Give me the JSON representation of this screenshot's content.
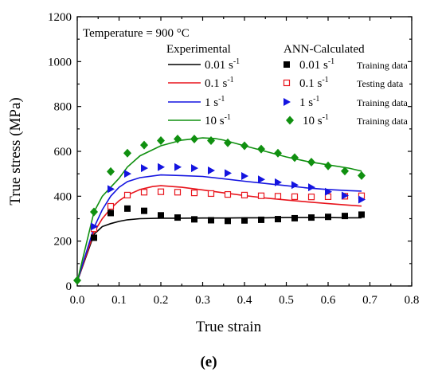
{
  "panel_label": "(e)",
  "chart_data": {
    "type": "line",
    "annotation": "Temperature = 900 °C",
    "xlabel": "True strain",
    "ylabel": "True stress (MPa)",
    "xlim": [
      0.0,
      0.8
    ],
    "ylim": [
      0,
      1200
    ],
    "x_ticks": [
      "0.0",
      "0.1",
      "0.2",
      "0.3",
      "0.4",
      "0.5",
      "0.6",
      "0.7",
      "0.8"
    ],
    "y_ticks": [
      "0",
      "200",
      "400",
      "600",
      "800",
      "1000",
      "1200"
    ],
    "legend": {
      "placement": "top-right",
      "col1_header": "Experimental",
      "col2_header": "ANN-Calculated",
      "rows": [
        {
          "line_label": "0.01 s",
          "marker_label": "0.01 s",
          "kind": "Training data",
          "color": "#000000",
          "marker": "square"
        },
        {
          "line_label": "0.1 s",
          "marker_label": "0.1 s",
          "kind": "Testing data",
          "color": "#e8141c",
          "marker": "open-square"
        },
        {
          "line_label": "1 s",
          "marker_label": "1 s",
          "kind": "Training data",
          "color": "#1414e0",
          "marker": "triangle-right"
        },
        {
          "line_label": "10 s",
          "marker_label": "10 s",
          "kind": "Training data",
          "color": "#109010",
          "marker": "diamond"
        }
      ],
      "superscript": "-1"
    },
    "experimental_series": [
      {
        "name": "0.01 s-1",
        "color": "#000000",
        "points": [
          [
            0.0,
            20
          ],
          [
            0.04,
            230
          ],
          [
            0.06,
            265
          ],
          [
            0.08,
            278
          ],
          [
            0.1,
            288
          ],
          [
            0.12,
            295
          ],
          [
            0.15,
            300
          ],
          [
            0.2,
            302
          ],
          [
            0.25,
            302
          ],
          [
            0.3,
            303
          ],
          [
            0.35,
            303
          ],
          [
            0.4,
            304
          ],
          [
            0.45,
            304
          ],
          [
            0.5,
            305
          ],
          [
            0.55,
            305
          ],
          [
            0.6,
            305
          ],
          [
            0.65,
            304
          ],
          [
            0.68,
            304
          ]
        ]
      },
      {
        "name": "0.1 s-1",
        "color": "#e8141c",
        "points": [
          [
            0.0,
            20
          ],
          [
            0.04,
            240
          ],
          [
            0.06,
            300
          ],
          [
            0.08,
            345
          ],
          [
            0.1,
            380
          ],
          [
            0.12,
            405
          ],
          [
            0.15,
            430
          ],
          [
            0.18,
            443
          ],
          [
            0.2,
            447
          ],
          [
            0.25,
            440
          ],
          [
            0.3,
            428
          ],
          [
            0.35,
            415
          ],
          [
            0.4,
            403
          ],
          [
            0.45,
            392
          ],
          [
            0.5,
            383
          ],
          [
            0.55,
            375
          ],
          [
            0.6,
            367
          ],
          [
            0.65,
            360
          ],
          [
            0.68,
            356
          ]
        ]
      },
      {
        "name": "1 s-1",
        "color": "#1414e0",
        "points": [
          [
            0.0,
            20
          ],
          [
            0.04,
            260
          ],
          [
            0.06,
            340
          ],
          [
            0.08,
            400
          ],
          [
            0.1,
            440
          ],
          [
            0.12,
            465
          ],
          [
            0.15,
            483
          ],
          [
            0.2,
            495
          ],
          [
            0.25,
            492
          ],
          [
            0.3,
            488
          ],
          [
            0.35,
            478
          ],
          [
            0.4,
            467
          ],
          [
            0.45,
            457
          ],
          [
            0.5,
            447
          ],
          [
            0.55,
            437
          ],
          [
            0.6,
            430
          ],
          [
            0.65,
            425
          ],
          [
            0.68,
            423
          ]
        ]
      },
      {
        "name": "10 s-1",
        "color": "#109010",
        "points": [
          [
            0.0,
            20
          ],
          [
            0.04,
            330
          ],
          [
            0.06,
            400
          ],
          [
            0.08,
            440
          ],
          [
            0.1,
            480
          ],
          [
            0.12,
            530
          ],
          [
            0.15,
            580
          ],
          [
            0.2,
            625
          ],
          [
            0.25,
            650
          ],
          [
            0.3,
            660
          ],
          [
            0.33,
            657
          ],
          [
            0.35,
            650
          ],
          [
            0.4,
            625
          ],
          [
            0.45,
            600
          ],
          [
            0.5,
            575
          ],
          [
            0.55,
            555
          ],
          [
            0.6,
            540
          ],
          [
            0.65,
            525
          ],
          [
            0.68,
            512
          ]
        ]
      }
    ],
    "ann_series": [
      {
        "name": "0.01 s-1",
        "kind": "Training data",
        "color": "#000000",
        "marker": "square",
        "points": [
          [
            0.04,
            215
          ],
          [
            0.08,
            325
          ],
          [
            0.12,
            345
          ],
          [
            0.16,
            335
          ],
          [
            0.2,
            315
          ],
          [
            0.24,
            305
          ],
          [
            0.28,
            297
          ],
          [
            0.32,
            293
          ],
          [
            0.36,
            290
          ],
          [
            0.4,
            292
          ],
          [
            0.44,
            295
          ],
          [
            0.48,
            298
          ],
          [
            0.52,
            302
          ],
          [
            0.56,
            305
          ],
          [
            0.6,
            308
          ],
          [
            0.64,
            312
          ],
          [
            0.68,
            318
          ]
        ]
      },
      {
        "name": "0.1 s-1",
        "kind": "Testing data",
        "color": "#e8141c",
        "marker": "open-square",
        "points": [
          [
            0.04,
            255
          ],
          [
            0.08,
            355
          ],
          [
            0.12,
            405
          ],
          [
            0.16,
            418
          ],
          [
            0.2,
            420
          ],
          [
            0.24,
            418
          ],
          [
            0.28,
            415
          ],
          [
            0.32,
            412
          ],
          [
            0.36,
            408
          ],
          [
            0.4,
            405
          ],
          [
            0.44,
            402
          ],
          [
            0.48,
            400
          ],
          [
            0.52,
            398
          ],
          [
            0.56,
            397
          ],
          [
            0.6,
            398
          ],
          [
            0.64,
            400
          ],
          [
            0.68,
            402
          ]
        ]
      },
      {
        "name": "1 s-1",
        "kind": "Training data",
        "color": "#1414e0",
        "marker": "triangle-right",
        "points": [
          [
            0.04,
            265
          ],
          [
            0.08,
            432
          ],
          [
            0.12,
            500
          ],
          [
            0.16,
            525
          ],
          [
            0.2,
            530
          ],
          [
            0.24,
            530
          ],
          [
            0.28,
            525
          ],
          [
            0.32,
            515
          ],
          [
            0.36,
            503
          ],
          [
            0.4,
            490
          ],
          [
            0.44,
            475
          ],
          [
            0.48,
            462
          ],
          [
            0.52,
            450
          ],
          [
            0.56,
            440
          ],
          [
            0.6,
            420
          ],
          [
            0.64,
            403
          ],
          [
            0.68,
            385
          ]
        ]
      },
      {
        "name": "10 s-1",
        "kind": "Training data",
        "color": "#109010",
        "marker": "diamond",
        "points": [
          [
            0.0,
            25
          ],
          [
            0.04,
            330
          ],
          [
            0.08,
            510
          ],
          [
            0.12,
            592
          ],
          [
            0.16,
            628
          ],
          [
            0.2,
            648
          ],
          [
            0.24,
            655
          ],
          [
            0.28,
            655
          ],
          [
            0.32,
            648
          ],
          [
            0.36,
            638
          ],
          [
            0.4,
            625
          ],
          [
            0.44,
            610
          ],
          [
            0.48,
            592
          ],
          [
            0.52,
            572
          ],
          [
            0.56,
            552
          ],
          [
            0.6,
            535
          ],
          [
            0.64,
            512
          ],
          [
            0.68,
            492
          ]
        ]
      }
    ]
  }
}
